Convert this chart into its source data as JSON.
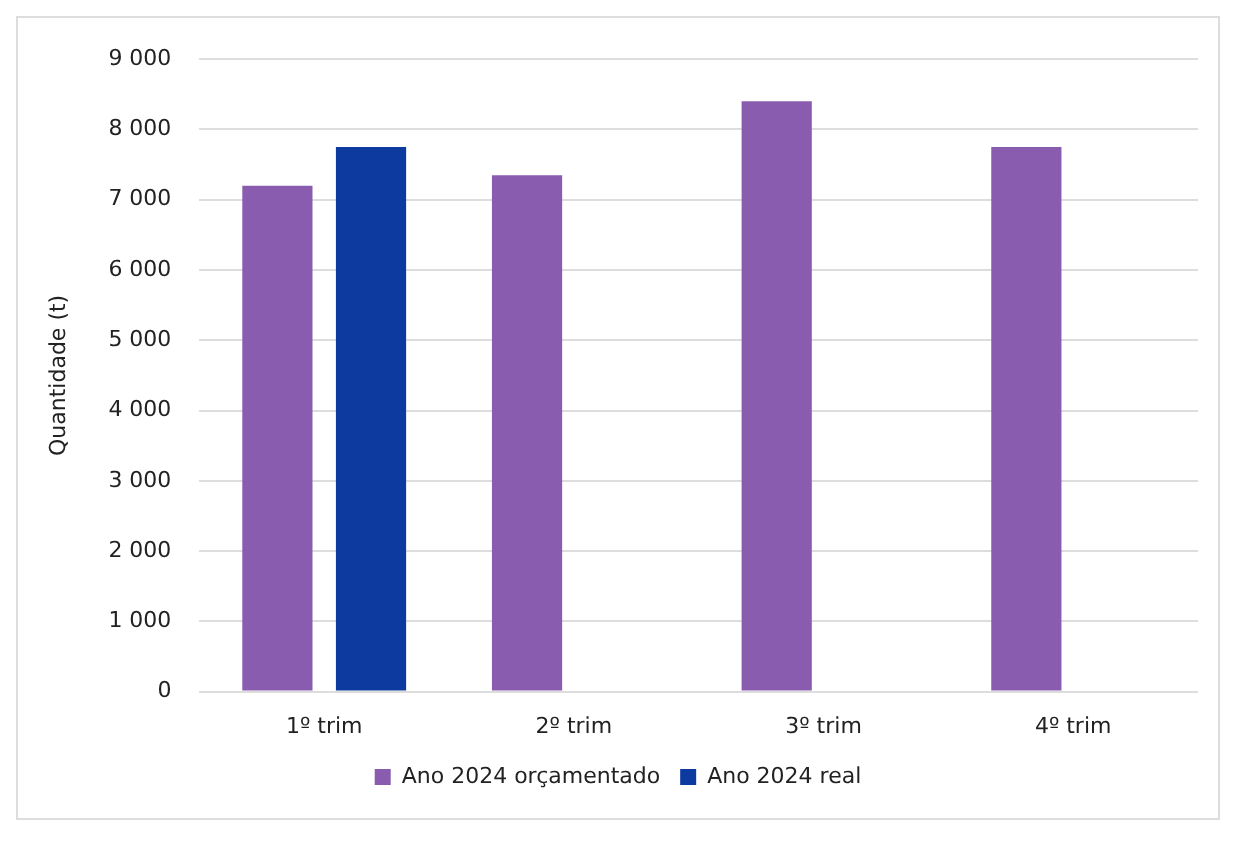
{
  "chart_data": {
    "type": "bar",
    "ylabel": "Quantidade (t)",
    "categories": [
      "1º trim",
      "2º trim",
      "3º trim",
      "4º trim"
    ],
    "series": [
      {
        "name": "Ano 2024 orçamentado",
        "color": "#8a5cb0",
        "values": [
          7200,
          7350,
          8400,
          7750
        ]
      },
      {
        "name": "Ano 2024 real",
        "color": "#0d3a9e",
        "values": [
          7750,
          null,
          null,
          null
        ]
      }
    ],
    "ylim": [
      0,
      9000
    ],
    "yticks": [
      {
        "value": 0,
        "label": "0"
      },
      {
        "value": 1000,
        "label": "1 000"
      },
      {
        "value": 2000,
        "label": "2 000"
      },
      {
        "value": 3000,
        "label": "3 000"
      },
      {
        "value": 4000,
        "label": "4 000"
      },
      {
        "value": 5000,
        "label": "5 000"
      },
      {
        "value": 6000,
        "label": "6 000"
      },
      {
        "value": 7000,
        "label": "7 000"
      },
      {
        "value": 8000,
        "label": "8 000"
      },
      {
        "value": 9000,
        "label": "9 000"
      }
    ],
    "grid": "y",
    "legend": "bottom"
  }
}
